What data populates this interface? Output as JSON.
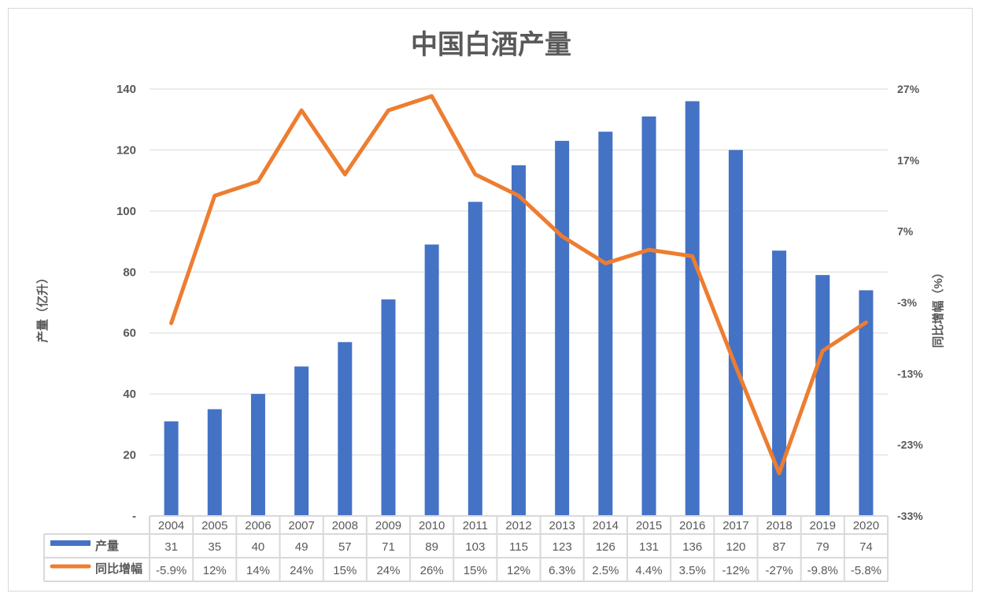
{
  "chart_data": {
    "type": "bar+line",
    "title": "中国白酒产量",
    "categories": [
      "2004",
      "2005",
      "2006",
      "2007",
      "2008",
      "2009",
      "2010",
      "2011",
      "2012",
      "2013",
      "2014",
      "2015",
      "2016",
      "2017",
      "2018",
      "2019",
      "2020"
    ],
    "series": [
      {
        "name": "产量",
        "type": "bar",
        "axis": "left",
        "color": "#4472c4",
        "values": [
          31,
          35,
          40,
          49,
          57,
          71,
          89,
          103,
          115,
          123,
          126,
          131,
          136,
          120,
          87,
          79,
          74
        ]
      },
      {
        "name": "同比增幅",
        "type": "line",
        "axis": "right",
        "color": "#ed7d31",
        "values": [
          -5.9,
          12,
          14,
          24,
          15,
          24,
          26,
          15,
          12,
          6.3,
          2.5,
          4.4,
          3.5,
          -12,
          -27,
          -9.8,
          -5.8
        ],
        "labels": [
          "-5.9%",
          "12%",
          "14%",
          "24%",
          "15%",
          "24%",
          "26%",
          "15%",
          "12%",
          "6.3%",
          "2.5%",
          "4.4%",
          "3.5%",
          "-12%",
          "-27%",
          "-9.8%",
          "-5.8%"
        ]
      }
    ],
    "ylabel": "产量（亿升）",
    "y2label": "同比增幅（%）",
    "ylim": [
      0,
      140
    ],
    "y2lim": [
      -33,
      27
    ],
    "yticks": [
      "-",
      "20",
      "40",
      "60",
      "80",
      "100",
      "120",
      "140"
    ],
    "y2ticks": [
      "-33%",
      "-23%",
      "-13%",
      "-3%",
      "7%",
      "17%",
      "27%"
    ],
    "grid": true,
    "legend": "data-table"
  }
}
